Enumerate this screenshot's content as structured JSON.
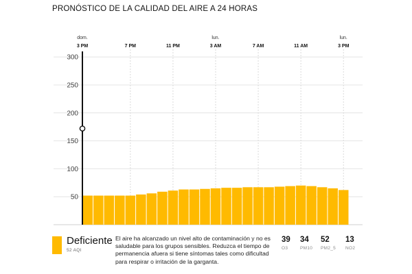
{
  "header": {
    "title": "PRONÓSTICO DE LA CALIDAD DEL AIRE A 24 HORAS"
  },
  "chart_data": {
    "type": "bar",
    "title": "PRONÓSTICO DE LA CALIDAD DEL AIRE A 24 HORAS",
    "xlabel": "",
    "ylabel": "",
    "ylim": [
      0,
      310
    ],
    "y_ticks": [
      "50",
      "100",
      "150",
      "200",
      "250",
      "300"
    ],
    "grid": true,
    "bar_color": "#ffba00",
    "x_ticks": [
      {
        "day": "dom.",
        "time": "3 PM",
        "index": 0
      },
      {
        "day": "",
        "time": "7 PM",
        "index": 4
      },
      {
        "day": "",
        "time": "11 PM",
        "index": 8
      },
      {
        "day": "lun.",
        "time": "3 AM",
        "index": 12
      },
      {
        "day": "",
        "time": "7 AM",
        "index": 16
      },
      {
        "day": "",
        "time": "11 AM",
        "index": 20
      },
      {
        "day": "lun.",
        "time": "3 PM",
        "index": 24
      }
    ],
    "series": [
      {
        "values": [
          52,
          52,
          52,
          52,
          52,
          54,
          56,
          59,
          61,
          63,
          63,
          64,
          65,
          66,
          66,
          67,
          67,
          67,
          68,
          69,
          70,
          69,
          67,
          65,
          62
        ]
      }
    ],
    "cursor_value": 172
  },
  "legend": {
    "category": "Deficiente",
    "aqi_label": "52 AQI",
    "description": "El aire ha alcanzado un nivel alto de contaminación y no es saludable para los grupos sensibles. Reduzca el tiempo de permanencia afuera si tiene síntomas tales como dificultad para respirar o irritación de la garganta.",
    "color": "#ffba00"
  },
  "pollutants": [
    {
      "value": "39",
      "name": "O3"
    },
    {
      "value": "34",
      "name": "PM10"
    },
    {
      "value": "52",
      "name": "PM2_5"
    },
    {
      "value": "13",
      "name": "NO2"
    }
  ]
}
